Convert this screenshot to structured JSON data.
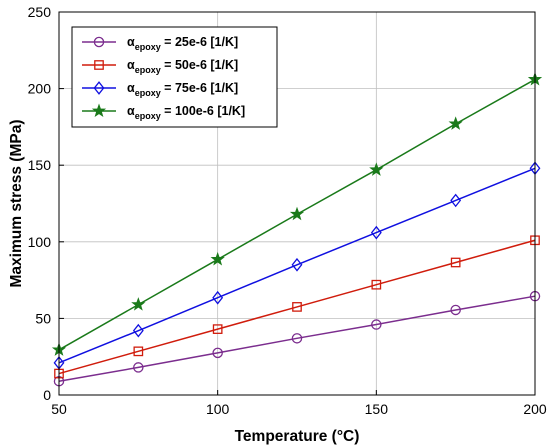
{
  "chart_data": {
    "type": "line",
    "x": [
      50,
      75,
      100,
      125,
      150,
      175,
      200
    ],
    "xlabel": "Temperature (°C)",
    "ylabel": "Maximum stress (MPa)",
    "xlim": [
      50,
      200
    ],
    "ylim": [
      0,
      250
    ],
    "xticks": [
      "50",
      "100",
      "150",
      "200"
    ],
    "yticks": [
      "0",
      "50",
      "100",
      "150",
      "200",
      "250"
    ],
    "grid": true,
    "legend_position": "top-left",
    "legend_prefix": "α",
    "legend_subscript": "epoxy",
    "series": [
      {
        "name": "αepoxy = 25e-6 [1/K]",
        "legend_suffix": " = 25e-6 [1/K]",
        "color": "#7b2d8e",
        "marker": "circle",
        "values": [
          9,
          18,
          27.5,
          37,
          46,
          55.5,
          64.5
        ]
      },
      {
        "name": "αepoxy = 50e-6 [1/K]",
        "legend_suffix": " = 50e-6 [1/K]",
        "color": "#d01c0c",
        "marker": "square",
        "values": [
          14,
          28.5,
          43,
          57.5,
          72,
          86.5,
          101
        ]
      },
      {
        "name": "αepoxy = 75e-6 [1/K]",
        "legend_suffix": " = 75e-6 [1/K]",
        "color": "#1010e0",
        "marker": "diamond",
        "values": [
          21,
          42,
          63.5,
          85,
          106,
          127,
          148
        ]
      },
      {
        "name": "αepoxy = 100e-6 [1/K]",
        "legend_suffix": " = 100e-6 [1/K]",
        "color": "#1a7a1a",
        "marker": "star",
        "values": [
          29.5,
          59,
          88.5,
          118,
          147,
          177,
          206
        ]
      }
    ]
  }
}
